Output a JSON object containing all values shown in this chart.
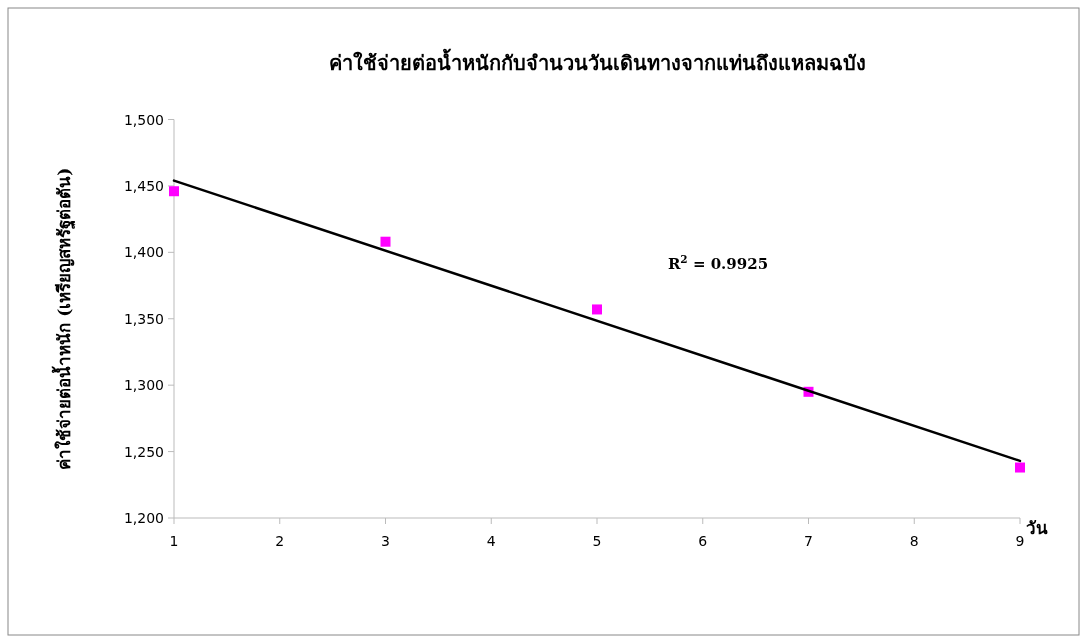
{
  "chart_data": {
    "type": "scatter",
    "title": "ค่าใช้จ่ายต่อน้ำหนักกับจำนวนวันเดินทางจากแท่นถึงแหลมฉบัง",
    "ylabel": "ค่าใช้จ่ายต่อน้ำหนัก (เหรียญสหรัฐต่อตัน)",
    "xlabel": "วัน",
    "annotations": [
      "R$^{2}$ = 0.9925"
    ],
    "xlim": [
      1,
      9
    ],
    "xticks": [
      1,
      2,
      3,
      4,
      5,
      6,
      7,
      8,
      9
    ],
    "ylim": [
      1200,
      1500
    ],
    "yticks": [
      {
        "value": 1200,
        "label": "1,200"
      },
      {
        "value": 1250,
        "label": "1,250"
      },
      {
        "value": 1300,
        "label": "1,300"
      },
      {
        "value": 1350,
        "label": "1,350"
      },
      {
        "value": 1400,
        "label": "1,400"
      },
      {
        "value": 1450,
        "label": "1,450"
      },
      {
        "value": 1500,
        "label": "1,500"
      }
    ],
    "grid": false,
    "series": [
      {
        "type": "scatter",
        "marker": "square",
        "color": "#ff00ff",
        "x": [
          1,
          3,
          5,
          7,
          9
        ],
        "values": [
          1446,
          1408,
          1357,
          1295,
          1238
        ]
      },
      {
        "type": "line",
        "marker": "none",
        "line_style": "solid",
        "color": "#000000",
        "x": [
          1,
          9
        ],
        "values": [
          1454,
          1243
        ]
      }
    ]
  }
}
